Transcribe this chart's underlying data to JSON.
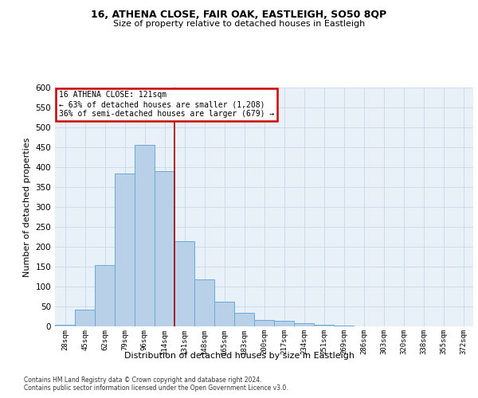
{
  "title": "16, ATHENA CLOSE, FAIR OAK, EASTLEIGH, SO50 8QP",
  "subtitle": "Size of property relative to detached houses in Eastleigh",
  "xlabel_bottom": "Distribution of detached houses by size in Eastleigh",
  "ylabel": "Number of detached properties",
  "categories": [
    "28sqm",
    "45sqm",
    "62sqm",
    "79sqm",
    "96sqm",
    "114sqm",
    "131sqm",
    "148sqm",
    "165sqm",
    "183sqm",
    "200sqm",
    "217sqm",
    "234sqm",
    "251sqm",
    "269sqm",
    "286sqm",
    "303sqm",
    "320sqm",
    "338sqm",
    "355sqm",
    "372sqm"
  ],
  "values": [
    4,
    42,
    155,
    385,
    457,
    390,
    215,
    118,
    63,
    35,
    16,
    15,
    9,
    5,
    2,
    1,
    1,
    1,
    1,
    1,
    1
  ],
  "bar_color": "#b8d0e8",
  "bar_edge_color": "#6aaad4",
  "highlight_line_color": "#aa0000",
  "annotation_title": "16 ATHENA CLOSE: 121sqm",
  "annotation_line1": "← 63% of detached houses are smaller (1,208)",
  "annotation_line2": "36% of semi-detached houses are larger (679) →",
  "annotation_box_color": "#cc0000",
  "ylim": [
    0,
    600
  ],
  "yticks": [
    0,
    50,
    100,
    150,
    200,
    250,
    300,
    350,
    400,
    450,
    500,
    550,
    600
  ],
  "grid_color": "#c8d8e8",
  "bg_color": "#e8f0f8",
  "footnote1": "Contains HM Land Registry data © Crown copyright and database right 2024.",
  "footnote2": "Contains public sector information licensed under the Open Government Licence v3.0."
}
